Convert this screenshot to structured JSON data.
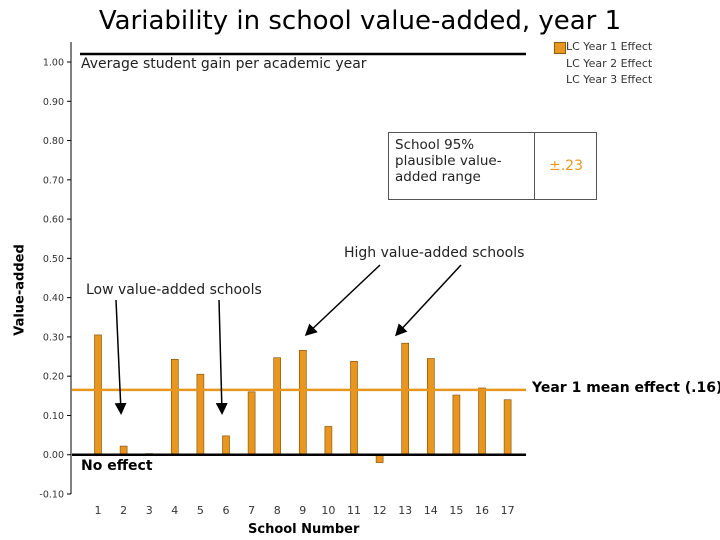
{
  "title": "Variability in school value-added, year 1",
  "chart_data": {
    "type": "bar",
    "title": "Variability in school value-added, year 1",
    "xlabel": "School Number",
    "ylabel": "Value-added",
    "ylim": [
      -0.1,
      1.0
    ],
    "y_ticks": [
      "-0.10",
      "0.00",
      "0.10",
      "0.20",
      "0.30",
      "0.40",
      "0.50",
      "0.60",
      "0.70",
      "0.80",
      "0.90",
      "1.00"
    ],
    "categories": [
      "1",
      "2",
      "3",
      "4",
      "5",
      "6",
      "7",
      "8",
      "9",
      "10",
      "11",
      "12",
      "13",
      "14",
      "15",
      "16",
      "17"
    ],
    "series": [
      {
        "name": "LC Year 1 Effect",
        "values": [
          0.305,
          0.022,
          0.003,
          0.243,
          0.205,
          0.048,
          0.16,
          0.247,
          0.266,
          0.072,
          0.238,
          -0.02,
          0.284,
          0.245,
          0.152,
          0.17,
          0.14
        ]
      }
    ],
    "legend": [
      "LC Year 1 Effect",
      "LC Year 2 Effect",
      "LC Year 3 Effect"
    ],
    "legend_position": "top-right",
    "reference_lines": {
      "average_gain": {
        "value": 1.0,
        "label": "Average student gain per academic year"
      },
      "mean_effect": {
        "value": 0.165,
        "label": "Year 1 mean effect (.16)",
        "color": "#e8961e"
      },
      "no_effect": {
        "value": 0.0,
        "label": "No effect"
      }
    },
    "annotations": {
      "low": "Low value-added schools",
      "high": "High value-added schools"
    },
    "interval_box": {
      "label": "School 95% plausible value-added range",
      "value": "±.23"
    },
    "bar_color": "#e8961e",
    "grid": false
  }
}
